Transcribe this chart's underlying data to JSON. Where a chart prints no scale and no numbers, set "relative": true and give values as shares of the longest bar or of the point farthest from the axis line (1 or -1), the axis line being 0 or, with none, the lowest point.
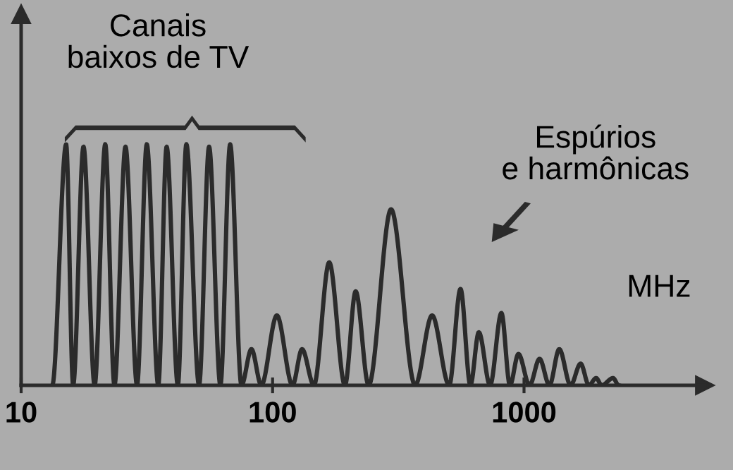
{
  "chart_data": {
    "type": "line",
    "relative": true,
    "xlabel": "MHz",
    "log": "x",
    "xlim": [
      10,
      5236
    ],
    "xticks": [
      10,
      100,
      1000
    ],
    "tick_labels": "x",
    "grid": false,
    "legend": false,
    "marker": "none",
    "line_style": "solid",
    "annotations": [
      "Canais\nbaixos de TV",
      "Espúrios\ne harmônicas"
    ],
    "series": [
      {
        "color": "#2b2b2b",
        "x": [
          13.3,
          15.1,
          16.1,
          17.7,
          19.6,
          21.6,
          23.5,
          26.0,
          28.9,
          31.6,
          35.1,
          37.9,
          42.0,
          45.4,
          51.0,
          55.9,
          62.0,
          67.8,
          75.2,
          82.4,
          90.2,
          104,
          120,
          131,
          146,
          168,
          194,
          214,
          241,
          296,
          369,
          431,
          504,
          559,
          612,
          661,
          733,
          813,
          879,
          950,
          1052,
          1153,
          1262,
          1381,
          1532,
          1679,
          1812,
          1935,
          2037,
          2261,
          2378
        ],
        "values": [
          0,
          1.0,
          0,
          0.99,
          0,
          1.0,
          0,
          0.99,
          0,
          1.0,
          0,
          0.99,
          0,
          1.0,
          0,
          0.99,
          0,
          1.0,
          0,
          0.15,
          0,
          0.29,
          0,
          0.15,
          0,
          0.51,
          0,
          0.39,
          0,
          0.73,
          0,
          0.29,
          0,
          0.4,
          0,
          0.22,
          0,
          0.3,
          0,
          0.13,
          0,
          0.11,
          0,
          0.15,
          0,
          0.09,
          0,
          0.03,
          0,
          0.03,
          0
        ]
      }
    ]
  }
}
